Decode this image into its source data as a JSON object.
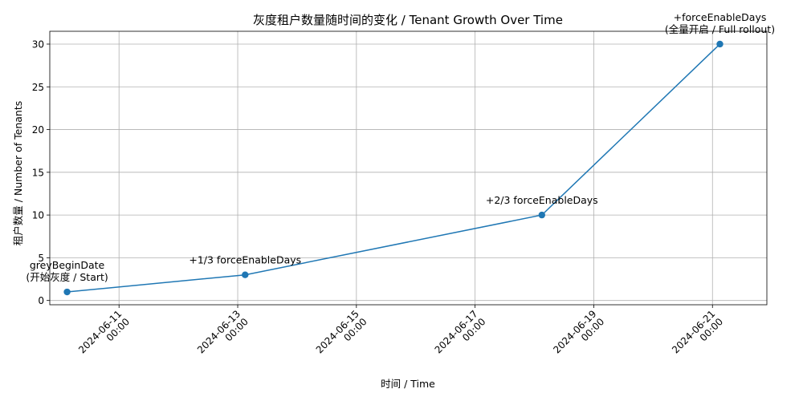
{
  "chart_data": {
    "type": "line",
    "title": "灰度租户数量随时间的变化 / Tenant Growth Over Time",
    "xlabel": "时间 / Time",
    "ylabel": "租户数量 / Number of Tenants",
    "x_axis": "datetime",
    "xlim": [
      "2024-06-09 20:00",
      "2024-06-21 22:00"
    ],
    "ylim": [
      -0.5,
      31.5
    ],
    "grid": true,
    "x_ticks": [
      {
        "value": "2024-06-11 00:00",
        "label": [
          "2024-06-11",
          "00:00"
        ]
      },
      {
        "value": "2024-06-13 00:00",
        "label": [
          "2024-06-13",
          "00:00"
        ]
      },
      {
        "value": "2024-06-15 00:00",
        "label": [
          "2024-06-15",
          "00:00"
        ]
      },
      {
        "value": "2024-06-17 00:00",
        "label": [
          "2024-06-17",
          "00:00"
        ]
      },
      {
        "value": "2024-06-19 00:00",
        "label": [
          "2024-06-19",
          "00:00"
        ]
      },
      {
        "value": "2024-06-21 00:00",
        "label": [
          "2024-06-21",
          "00:00"
        ]
      }
    ],
    "y_ticks": [
      0,
      5,
      10,
      15,
      20,
      25,
      30
    ],
    "series": [
      {
        "color": "#1f77b4",
        "marker": "circle",
        "points": [
          {
            "x": "2024-06-10 03:00",
            "y": 1,
            "annotation": [
              "greyBeginDate",
              "(开始灰度 / Start)"
            ]
          },
          {
            "x": "2024-06-13 03:00",
            "y": 3,
            "annotation": [
              "+1/3 forceEnableDays"
            ]
          },
          {
            "x": "2024-06-18 03:00",
            "y": 10,
            "annotation": [
              "+2/3 forceEnableDays"
            ]
          },
          {
            "x": "2024-06-21 03:00",
            "y": 30,
            "annotation": [
              "+forceEnableDays",
              "(全量开启 / Full rollout)"
            ]
          }
        ]
      }
    ]
  }
}
